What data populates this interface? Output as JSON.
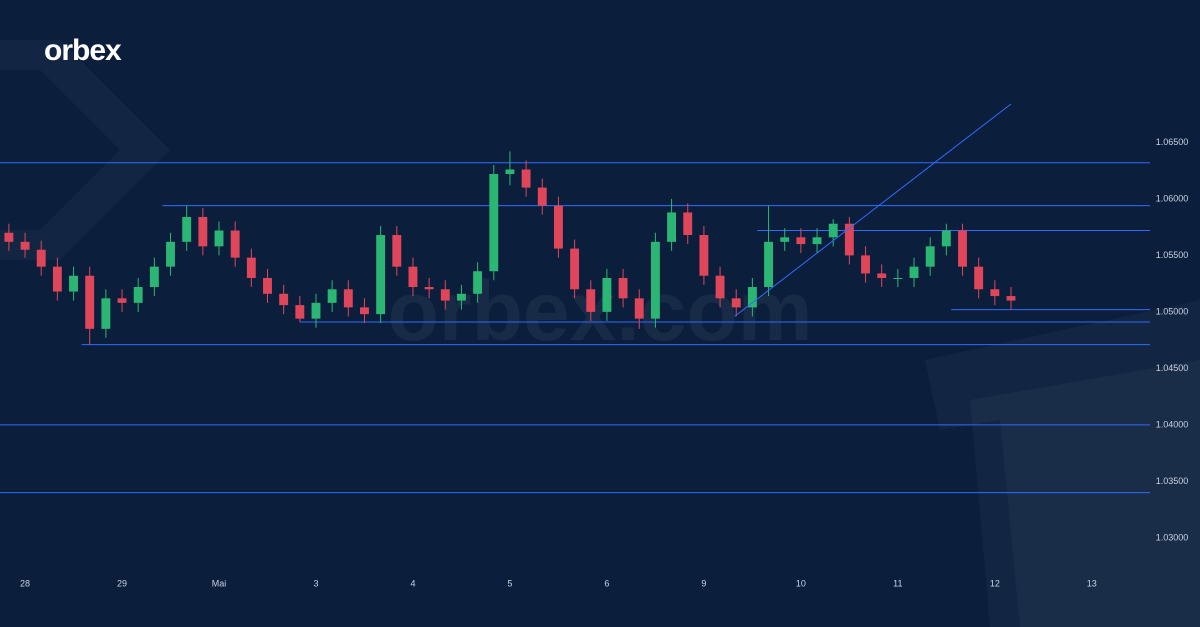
{
  "brand": "orbex",
  "watermark": "orbex.com",
  "chart_data": {
    "type": "candlestick",
    "up_color": "#2bb673",
    "down_color": "#e0465a",
    "level_color": "#2f6bff",
    "grid": false,
    "x": [
      -1,
      0,
      1,
      2,
      3,
      4,
      5,
      6,
      7,
      8,
      9,
      10,
      11,
      12,
      13,
      14,
      15,
      16,
      17,
      18,
      19,
      20,
      21,
      22,
      23,
      24,
      25,
      26,
      27,
      28,
      29,
      30,
      31,
      32,
      33,
      34,
      35,
      36,
      37,
      38,
      39,
      40,
      41,
      42,
      43,
      44,
      45,
      46,
      47,
      48,
      49,
      50,
      51,
      52,
      53,
      54,
      55,
      56,
      57,
      58,
      59,
      60,
      61
    ],
    "open": [
      1.057,
      1.0562,
      1.0555,
      1.054,
      1.0518,
      1.0532,
      1.0485,
      1.0512,
      1.0508,
      1.0522,
      1.054,
      1.0562,
      1.0584,
      1.0558,
      1.0572,
      1.0548,
      1.053,
      1.0516,
      1.0506,
      1.0494,
      1.0508,
      1.052,
      1.0504,
      1.0498,
      1.0568,
      1.054,
      1.0522,
      1.052,
      1.051,
      1.0516,
      1.0536,
      1.0622,
      1.0626,
      1.061,
      1.0594,
      1.0556,
      1.052,
      1.05,
      1.053,
      1.0512,
      1.0494,
      1.0562,
      1.0588,
      1.0568,
      1.0532,
      1.0512,
      1.0504,
      1.0522,
      1.0562,
      1.0566,
      1.056,
      1.0566,
      1.0578,
      1.055,
      1.0534,
      1.053,
      1.053,
      1.054,
      1.0558,
      1.0572,
      1.054,
      1.052,
      1.0514
    ],
    "high": [
      1.0578,
      1.057,
      1.0563,
      1.0548,
      1.054,
      1.054,
      1.052,
      1.052,
      1.053,
      1.0548,
      1.057,
      1.0594,
      1.0592,
      1.058,
      1.058,
      1.0556,
      1.0538,
      1.0524,
      1.0514,
      1.0516,
      1.0528,
      1.0528,
      1.0512,
      1.0576,
      1.0576,
      1.0548,
      1.053,
      1.0528,
      1.0524,
      1.0544,
      1.063,
      1.0642,
      1.0634,
      1.0618,
      1.0602,
      1.0564,
      1.0528,
      1.0538,
      1.0538,
      1.052,
      1.057,
      1.06,
      1.0596,
      1.0576,
      1.054,
      1.052,
      1.053,
      1.0594,
      1.0574,
      1.0574,
      1.0574,
      1.0582,
      1.0584,
      1.0558,
      1.0542,
      1.0538,
      1.0548,
      1.0566,
      1.0578,
      1.0578,
      1.0548,
      1.0528,
      1.0522
    ],
    "low": [
      1.0554,
      1.0548,
      1.0532,
      1.051,
      1.051,
      1.0471,
      1.0477,
      1.05,
      1.05,
      1.0514,
      1.0532,
      1.0554,
      1.055,
      1.055,
      1.054,
      1.0522,
      1.0508,
      1.0498,
      1.0491,
      1.0486,
      1.05,
      1.0496,
      1.049,
      1.049,
      1.0532,
      1.0514,
      1.0512,
      1.0502,
      1.0502,
      1.0508,
      1.0528,
      1.0612,
      1.0602,
      1.0586,
      1.0548,
      1.0512,
      1.0492,
      1.0492,
      1.0504,
      1.0485,
      1.0486,
      1.0554,
      1.056,
      1.0524,
      1.0504,
      1.0496,
      1.0496,
      1.0514,
      1.0554,
      1.0552,
      1.0552,
      1.0558,
      1.0542,
      1.0526,
      1.0522,
      1.0522,
      1.0522,
      1.0532,
      1.055,
      1.0532,
      1.0512,
      1.0506,
      1.0502
    ],
    "close": [
      1.0562,
      1.0555,
      1.054,
      1.0518,
      1.0532,
      1.0485,
      1.0512,
      1.0508,
      1.0522,
      1.054,
      1.0562,
      1.0584,
      1.0558,
      1.0572,
      1.0548,
      1.053,
      1.0516,
      1.0506,
      1.0494,
      1.0508,
      1.052,
      1.0504,
      1.0498,
      1.0568,
      1.054,
      1.0522,
      1.052,
      1.051,
      1.0516,
      1.0536,
      1.0622,
      1.0626,
      1.061,
      1.0594,
      1.0556,
      1.052,
      1.05,
      1.053,
      1.0512,
      1.0494,
      1.0562,
      1.0588,
      1.0568,
      1.0532,
      1.0512,
      1.0504,
      1.0522,
      1.0562,
      1.0566,
      1.056,
      1.0566,
      1.0578,
      1.055,
      1.0534,
      1.053,
      1.053,
      1.054,
      1.0558,
      1.0572,
      1.054,
      1.052,
      1.0514,
      1.051
    ],
    "levels": [
      {
        "value": 1.0632
      },
      {
        "value": 1.0594,
        "from": 8.5
      },
      {
        "value": 1.0572,
        "from": 45.3
      },
      {
        "value": 1.0502,
        "from": 57.3
      },
      {
        "value": 1.0491,
        "from": 17
      },
      {
        "value": 1.0471,
        "from": 3.5
      },
      {
        "value": 1.04
      },
      {
        "value": 1.034
      }
    ],
    "trendline": {
      "x": [
        43.9,
        61.0
      ],
      "values": [
        1.0496,
        1.0684
      ]
    },
    "xlim": [
      -1.55,
      69.6
    ],
    "ylim": [
      1.0276,
      1.0776
    ],
    "xticks": [
      {
        "value": 0,
        "label": "28"
      },
      {
        "value": 6,
        "label": "29"
      },
      {
        "value": 12,
        "label": "Mai"
      },
      {
        "value": 18,
        "label": "3"
      },
      {
        "value": 24,
        "label": "4"
      },
      {
        "value": 30,
        "label": "5"
      },
      {
        "value": 36,
        "label": "6"
      },
      {
        "value": 42,
        "label": "9"
      },
      {
        "value": 48,
        "label": "10"
      },
      {
        "value": 54,
        "label": "11"
      },
      {
        "value": 60,
        "label": "12"
      },
      {
        "value": 66,
        "label": "13"
      }
    ],
    "yticks": [
      {
        "value": 1.03,
        "label": "1.03000"
      },
      {
        "value": 1.035,
        "label": "1.03500"
      },
      {
        "value": 1.04,
        "label": "1.04000"
      },
      {
        "value": 1.045,
        "label": "1.04500"
      },
      {
        "value": 1.05,
        "label": "1.05000"
      },
      {
        "value": 1.055,
        "label": "1.05500"
      },
      {
        "value": 1.06,
        "label": "1.06000"
      },
      {
        "value": 1.065,
        "label": "1.06500"
      }
    ]
  }
}
